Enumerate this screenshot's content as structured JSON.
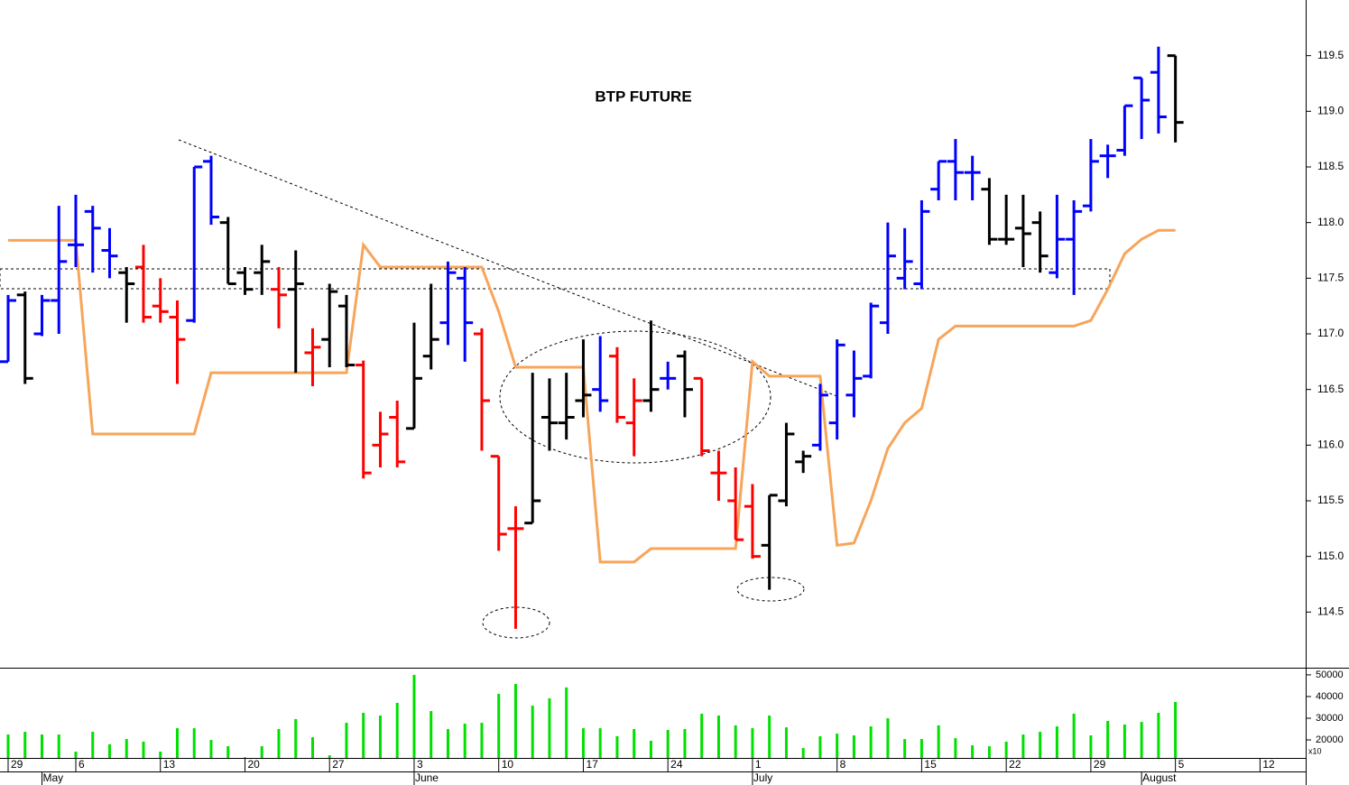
{
  "chart_data": [
    {
      "type": "ohlc",
      "title": "BTP FUTURE",
      "x": [
        0,
        1,
        2,
        3,
        4,
        5,
        6,
        7,
        8,
        9,
        10,
        11,
        12,
        13,
        14,
        15,
        16,
        17,
        18,
        19,
        20,
        21,
        22,
        23,
        24,
        25,
        26,
        27,
        28,
        29,
        30,
        31,
        32,
        33,
        34,
        35,
        36,
        37,
        38,
        39,
        40,
        41,
        42,
        43,
        44,
        45,
        46,
        47,
        48,
        49,
        50,
        51,
        52,
        53,
        54,
        55,
        56,
        57,
        58,
        59,
        60,
        61,
        62,
        63,
        64,
        65,
        66,
        67,
        68,
        69
      ],
      "open": [
        116.75,
        117.35,
        117.0,
        117.3,
        117.8,
        118.1,
        117.75,
        117.55,
        117.6,
        117.25,
        117.15,
        117.12,
        118.55,
        118.0,
        117.55,
        117.55,
        117.4,
        117.4,
        116.83,
        116.95,
        117.25,
        116.72,
        116.0,
        116.25,
        116.15,
        116.8,
        117.1,
        117.5,
        117.0,
        115.9,
        115.25,
        115.3,
        116.25,
        116.2,
        116.4,
        116.5,
        116.8,
        116.2,
        116.4,
        116.6,
        116.8,
        116.6,
        115.75,
        115.5,
        115.45,
        115.1,
        115.5,
        115.85,
        116.0,
        116.2,
        116.45,
        116.62,
        117.1,
        117.5,
        117.45,
        118.3,
        118.55,
        118.45,
        118.3,
        117.85,
        117.95,
        118.0,
        117.55,
        117.85,
        118.15,
        118.6,
        118.65,
        119.3,
        119.35,
        119.5
      ],
      "high": [
        117.35,
        117.38,
        117.35,
        118.15,
        118.25,
        118.15,
        117.95,
        117.6,
        117.8,
        117.5,
        117.3,
        118.5,
        118.6,
        118.05,
        117.6,
        117.8,
        117.6,
        117.75,
        117.05,
        117.45,
        117.35,
        116.76,
        116.3,
        116.4,
        117.1,
        117.45,
        117.65,
        117.6,
        117.05,
        115.9,
        115.45,
        116.65,
        116.6,
        116.65,
        116.95,
        116.98,
        116.88,
        116.6,
        117.12,
        116.75,
        116.85,
        116.6,
        115.95,
        115.8,
        115.65,
        115.55,
        116.2,
        115.95,
        116.55,
        116.95,
        116.85,
        117.28,
        118.0,
        117.95,
        118.2,
        118.55,
        118.75,
        118.6,
        118.4,
        118.25,
        118.25,
        118.1,
        118.25,
        118.2,
        118.75,
        118.7,
        119.05,
        119.3,
        119.58,
        119.5
      ],
      "low": [
        116.75,
        116.55,
        116.98,
        117.0,
        117.6,
        117.55,
        117.5,
        117.1,
        117.1,
        117.1,
        116.55,
        117.1,
        117.98,
        117.45,
        117.35,
        117.35,
        117.05,
        116.65,
        116.53,
        116.7,
        116.7,
        115.7,
        115.8,
        115.8,
        116.15,
        116.68,
        116.9,
        116.75,
        115.95,
        115.05,
        114.35,
        115.3,
        115.95,
        116.05,
        116.25,
        116.3,
        116.2,
        115.9,
        116.3,
        116.5,
        116.25,
        115.9,
        115.5,
        115.15,
        114.98,
        114.7,
        115.45,
        115.75,
        115.95,
        116.05,
        116.25,
        116.6,
        117.0,
        117.4,
        117.4,
        118.2,
        118.2,
        118.2,
        117.8,
        117.8,
        117.6,
        117.55,
        117.5,
        117.35,
        118.1,
        118.4,
        118.6,
        118.75,
        118.8,
        118.72
      ],
      "close": [
        117.3,
        116.6,
        117.3,
        117.65,
        117.8,
        117.95,
        117.7,
        117.45,
        117.15,
        117.2,
        116.95,
        118.5,
        118.05,
        117.45,
        117.4,
        117.65,
        117.35,
        117.45,
        116.88,
        117.38,
        116.72,
        115.75,
        116.1,
        115.85,
        116.6,
        116.95,
        117.55,
        117.1,
        116.4,
        115.2,
        115.25,
        115.5,
        116.2,
        116.25,
        116.45,
        116.4,
        116.25,
        116.4,
        116.5,
        116.6,
        116.5,
        115.95,
        115.75,
        115.15,
        115.0,
        115.55,
        116.1,
        115.9,
        116.45,
        116.9,
        116.6,
        117.25,
        117.7,
        117.65,
        118.1,
        118.55,
        118.45,
        118.45,
        117.85,
        117.85,
        117.9,
        117.7,
        117.85,
        118.1,
        118.55,
        118.6,
        119.05,
        119.1,
        118.95,
        118.9
      ],
      "bar_colors": [
        "#0000ff",
        "#000000",
        "#0000ff",
        "#0000ff",
        "#0000ff",
        "#0000ff",
        "#0000ff",
        "#000000",
        "#ff0000",
        "#ff0000",
        "#ff0000",
        "#0000ff",
        "#0000ff",
        "#000000",
        "#000000",
        "#000000",
        "#ff0000",
        "#000000",
        "#ff0000",
        "#000000",
        "#000000",
        "#ff0000",
        "#ff0000",
        "#ff0000",
        "#000000",
        "#000000",
        "#0000ff",
        "#0000ff",
        "#ff0000",
        "#ff0000",
        "#ff0000",
        "#000000",
        "#000000",
        "#000000",
        "#000000",
        "#0000ff",
        "#ff0000",
        "#ff0000",
        "#000000",
        "#0000ff",
        "#000000",
        "#ff0000",
        "#ff0000",
        "#ff0000",
        "#ff0000",
        "#000000",
        "#000000",
        "#000000",
        "#0000ff",
        "#0000ff",
        "#0000ff",
        "#0000ff",
        "#0000ff",
        "#0000ff",
        "#0000ff",
        "#0000ff",
        "#0000ff",
        "#0000ff",
        "#000000",
        "#000000",
        "#000000",
        "#000000",
        "#0000ff",
        "#0000ff",
        "#0000ff",
        "#0000ff",
        "#0000ff",
        "#0000ff",
        "#0000ff",
        "#000000"
      ],
      "line": {
        "color": "#f7a55a",
        "values": [
          117.84,
          117.84,
          117.84,
          117.84,
          117.84,
          116.1,
          116.1,
          116.1,
          116.1,
          116.1,
          116.1,
          116.1,
          116.65,
          116.65,
          116.65,
          116.65,
          116.65,
          116.65,
          116.65,
          116.65,
          116.65,
          117.8,
          117.6,
          117.6,
          117.6,
          117.6,
          117.6,
          117.6,
          117.6,
          117.2,
          116.7,
          116.7,
          116.7,
          116.7,
          116.7,
          114.95,
          114.95,
          114.95,
          115.07,
          115.07,
          115.07,
          115.07,
          115.07,
          115.07,
          116.75,
          116.62,
          116.62,
          116.62,
          116.62,
          115.1,
          115.12,
          115.5,
          115.97,
          116.2,
          116.33,
          116.95,
          117.07,
          117.07,
          117.07,
          117.07,
          117.07,
          117.07,
          117.07,
          117.07,
          117.12,
          117.4,
          117.72,
          117.85,
          117.93,
          117.93
        ]
      },
      "xlim": [
        -0.48,
        76.7
      ],
      "ylim": [
        114,
        120
      ],
      "yticks": [
        {
          "value": 114.5,
          "label": "114.5"
        },
        {
          "value": 115,
          "label": "115.0"
        },
        {
          "value": 115.5,
          "label": "115.5"
        },
        {
          "value": 116,
          "label": "116.0"
        },
        {
          "value": 116.5,
          "label": "116.5"
        },
        {
          "value": 117,
          "label": "117.0"
        },
        {
          "value": 117.5,
          "label": "117.5"
        },
        {
          "value": 118,
          "label": "118.0"
        },
        {
          "value": 118.5,
          "label": "118.5"
        },
        {
          "value": 119,
          "label": "119.0"
        },
        {
          "value": 119.5,
          "label": "119.5"
        }
      ]
    },
    {
      "type": "bar",
      "color": "#00e000",
      "unit_label": "x10",
      "x": [
        0,
        1,
        2,
        3,
        4,
        5,
        6,
        7,
        8,
        9,
        10,
        11,
        12,
        13,
        14,
        15,
        16,
        17,
        18,
        19,
        20,
        21,
        22,
        23,
        24,
        25,
        26,
        27,
        28,
        29,
        30,
        31,
        32,
        33,
        34,
        35,
        36,
        37,
        38,
        39,
        40,
        41,
        42,
        43,
        44,
        45,
        46,
        47,
        48,
        49,
        50,
        51,
        52,
        53,
        54,
        55,
        56,
        57,
        58,
        59,
        60,
        61,
        62,
        63,
        64,
        65,
        66,
        67,
        68,
        69
      ],
      "values": [
        22500,
        23750,
        22500,
        22500,
        14600,
        23750,
        18000,
        20400,
        19200,
        14600,
        25400,
        25400,
        20000,
        17100,
        12000,
        17100,
        25000,
        29600,
        21250,
        12900,
        27900,
        32500,
        31250,
        37100,
        50000,
        33300,
        25000,
        27500,
        27900,
        41250,
        45800,
        35800,
        39200,
        44200,
        25400,
        25400,
        21700,
        25000,
        19600,
        24600,
        25000,
        32100,
        31250,
        26700,
        25400,
        31250,
        25800,
        16250,
        21700,
        22900,
        22100,
        26250,
        30000,
        20400,
        20400,
        26700,
        20800,
        17500,
        17100,
        19200,
        22500,
        23750,
        26250,
        32100,
        22100,
        28750,
        27100,
        28300,
        32500,
        37500
      ],
      "xlim": [
        -0.48,
        76.7
      ],
      "ylim": [
        11700,
        53300
      ],
      "yticks": [
        20000,
        30000,
        40000,
        50000
      ],
      "xticks": [
        {
          "value": 0,
          "label": "29"
        },
        {
          "value": 4,
          "label": "6"
        },
        {
          "value": 9,
          "label": "13"
        },
        {
          "value": 14,
          "label": "20"
        },
        {
          "value": 19,
          "label": "27"
        },
        {
          "value": 24,
          "label": "3"
        },
        {
          "value": 29,
          "label": "10"
        },
        {
          "value": 34,
          "label": "17"
        },
        {
          "value": 39,
          "label": "24"
        },
        {
          "value": 44,
          "label": "1"
        },
        {
          "value": 49,
          "label": "8"
        },
        {
          "value": 54,
          "label": "15"
        },
        {
          "value": 59,
          "label": "22"
        },
        {
          "value": 64,
          "label": "29"
        },
        {
          "value": 69,
          "label": "5"
        },
        {
          "value": 74,
          "label": "12"
        }
      ],
      "month_ticks": [
        {
          "value": 2,
          "label": "May"
        },
        {
          "value": 24,
          "label": "June"
        },
        {
          "value": 44,
          "label": "July"
        },
        {
          "value": 67,
          "label": "August"
        }
      ]
    }
  ]
}
